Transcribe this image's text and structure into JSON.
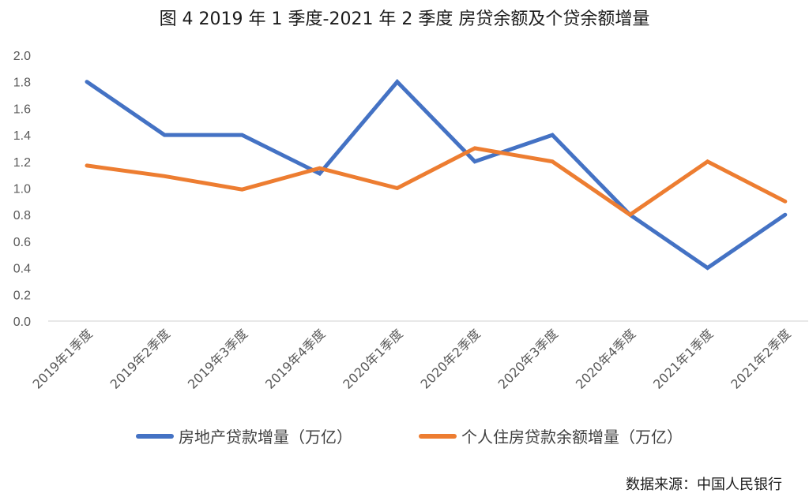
{
  "title": "图 4 2019 年 1 季度-2021 年 2 季度  房贷余额及个贷余额增量",
  "source": "数据来源：中国人民银行",
  "legend": [
    {
      "label": "房地产贷款增量（万亿）",
      "color": "#4472C4"
    },
    {
      "label": "个人住房贷款余额增量（万亿）",
      "color": "#ED7D31"
    }
  ],
  "chart_data": {
    "type": "line",
    "title": "图 4 2019 年 1 季度-2021 年 2 季度  房贷余额及个贷余额增量",
    "xlabel": "",
    "ylabel": "",
    "ylim": [
      0,
      2.0
    ],
    "yticks": [
      "0.0",
      "0.2",
      "0.4",
      "0.6",
      "0.8",
      "1.0",
      "1.2",
      "1.4",
      "1.6",
      "1.8",
      "2.0"
    ],
    "grid": false,
    "legend_position": "bottom",
    "categories": [
      "2019年1季度",
      "2019年2季度",
      "2019年3季度",
      "2019年4季度",
      "2020年1季度",
      "2020年2季度",
      "2020年3季度",
      "2020年4季度",
      "2021年1季度",
      "2021年2季度"
    ],
    "series": [
      {
        "name": "房地产贷款增量（万亿）",
        "color": "#4472C4",
        "values": [
          1.8,
          1.4,
          1.4,
          1.11,
          1.8,
          1.2,
          1.4,
          0.8,
          0.4,
          0.8
        ]
      },
      {
        "name": "个人住房贷款余额增量（万亿）",
        "color": "#ED7D31",
        "values": [
          1.17,
          1.09,
          0.99,
          1.15,
          1.0,
          1.3,
          1.2,
          0.8,
          1.2,
          0.9
        ]
      }
    ]
  }
}
